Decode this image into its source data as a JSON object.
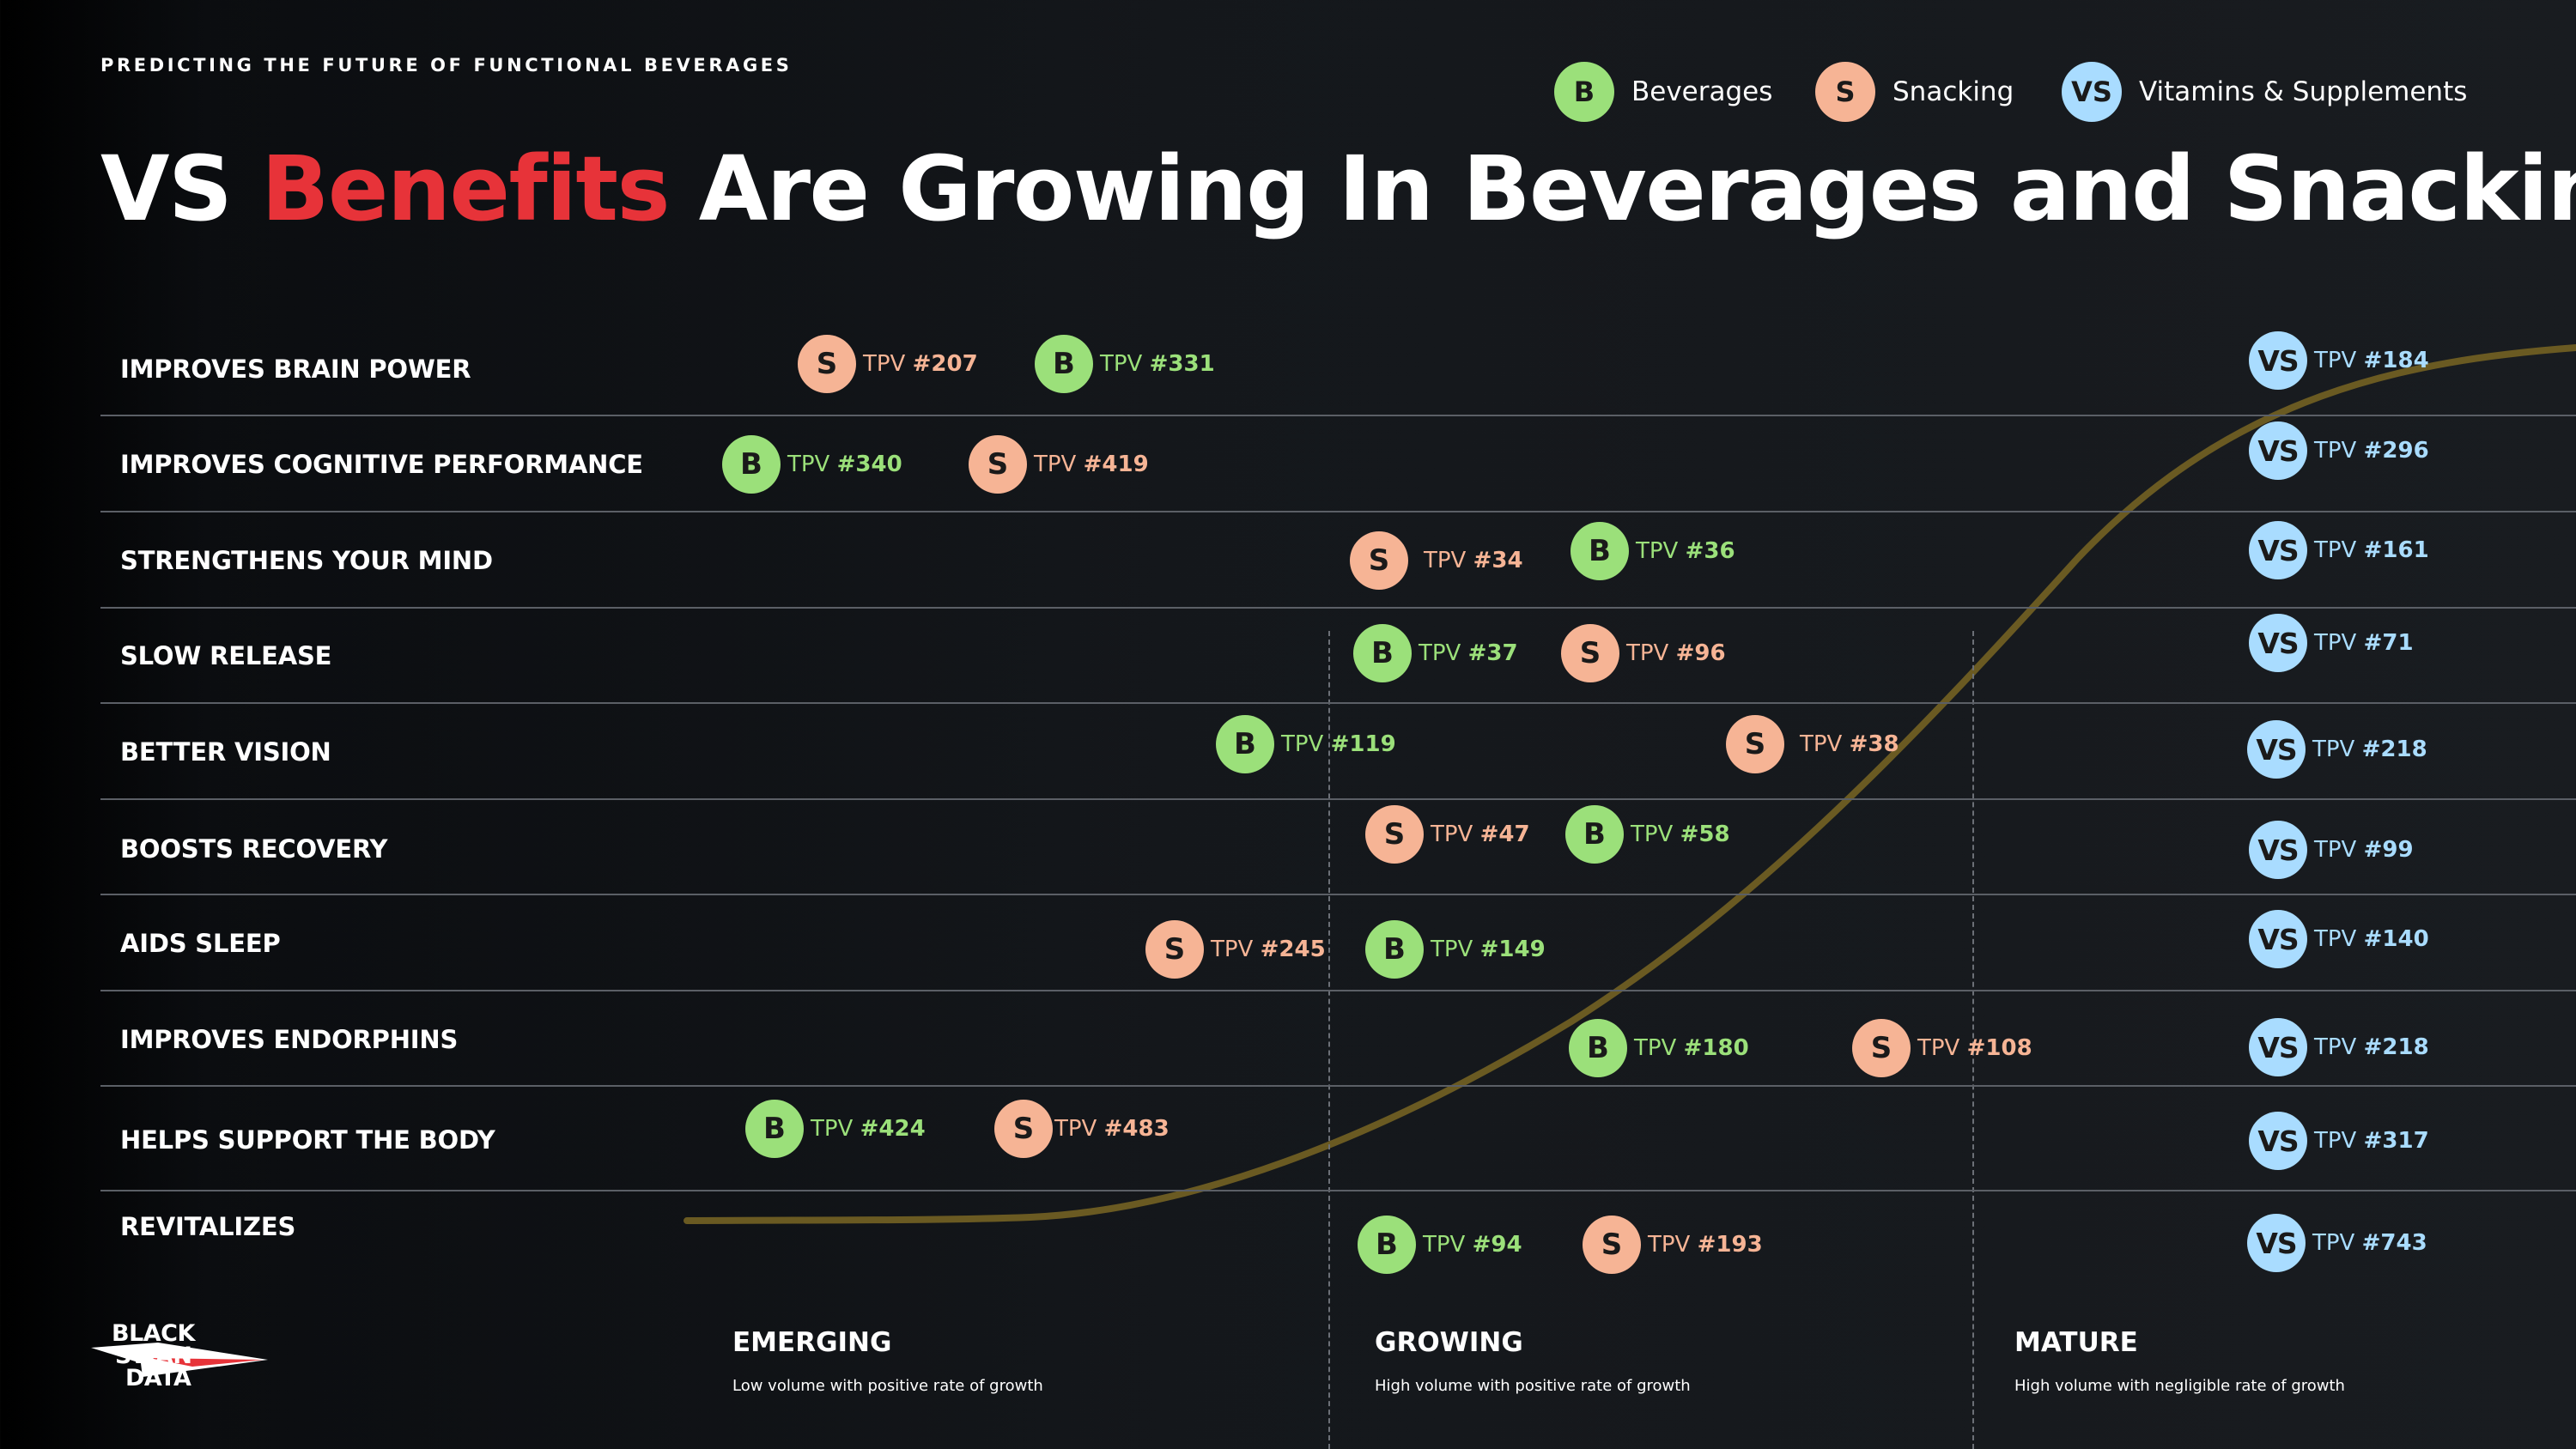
{
  "header": {
    "eyebrow": "PREDICTING THE FUTURE OF FUNCTIONAL BEVERAGES",
    "title_part1": "VS ",
    "title_highlight": "Benefits",
    "title_part2": " Are Growing In Beverages and Snacking"
  },
  "legend": [
    {
      "key": "B",
      "label": "Beverages",
      "color": "#9be07a"
    },
    {
      "key": "S",
      "label": "Snacking",
      "color": "#f6b495"
    },
    {
      "key": "VS",
      "label": "Vitamins & Supplements",
      "color": "#a9dcff"
    }
  ],
  "rows": [
    {
      "label": "IMPROVES BRAIN POWER",
      "markers": [
        {
          "cat": "S",
          "tpv_prefix": "TPV ",
          "tpv_rank": "#207"
        },
        {
          "cat": "B",
          "tpv_prefix": "TPV ",
          "tpv_rank": "#331"
        },
        {
          "cat": "VS",
          "tpv_prefix": "TPV ",
          "tpv_rank": "#184"
        }
      ]
    },
    {
      "label": "IMPROVES COGNITIVE PERFORMANCE",
      "markers": [
        {
          "cat": "B",
          "tpv_prefix": "TPV ",
          "tpv_rank": "#340"
        },
        {
          "cat": "S",
          "tpv_prefix": "TPV ",
          "tpv_rank": "#419"
        },
        {
          "cat": "VS",
          "tpv_prefix": "TPV ",
          "tpv_rank": "#296"
        }
      ]
    },
    {
      "label": "STRENGTHENS YOUR MIND",
      "markers": [
        {
          "cat": "S",
          "tpv_prefix": "TPV ",
          "tpv_rank": "#34"
        },
        {
          "cat": "B",
          "tpv_prefix": "TPV ",
          "tpv_rank": "#36"
        },
        {
          "cat": "VS",
          "tpv_prefix": "TPV ",
          "tpv_rank": "#161"
        }
      ]
    },
    {
      "label": "SLOW RELEASE",
      "markers": [
        {
          "cat": "B",
          "tpv_prefix": "TPV ",
          "tpv_rank": "#37"
        },
        {
          "cat": "S",
          "tpv_prefix": "TPV ",
          "tpv_rank": "#96"
        },
        {
          "cat": "VS",
          "tpv_prefix": "TPV ",
          "tpv_rank": "#71"
        }
      ]
    },
    {
      "label": "BETTER VISION",
      "markers": [
        {
          "cat": "B",
          "tpv_prefix": "TPV ",
          "tpv_rank": "#119"
        },
        {
          "cat": "S",
          "tpv_prefix": "TPV ",
          "tpv_rank": "#38"
        },
        {
          "cat": "VS",
          "tpv_prefix": "TPV ",
          "tpv_rank": "#218"
        }
      ]
    },
    {
      "label": "BOOSTS RECOVERY",
      "markers": [
        {
          "cat": "S",
          "tpv_prefix": "TPV ",
          "tpv_rank": "#47"
        },
        {
          "cat": "B",
          "tpv_prefix": "TPV ",
          "tpv_rank": "#58"
        },
        {
          "cat": "VS",
          "tpv_prefix": "TPV ",
          "tpv_rank": "#99"
        }
      ]
    },
    {
      "label": "AIDS SLEEP",
      "markers": [
        {
          "cat": "S",
          "tpv_prefix": "TPV ",
          "tpv_rank": "#245"
        },
        {
          "cat": "B",
          "tpv_prefix": "TPV ",
          "tpv_rank": "#149"
        },
        {
          "cat": "VS",
          "tpv_prefix": "TPV ",
          "tpv_rank": "#140"
        }
      ]
    },
    {
      "label": "IMPROVES ENDORPHINS",
      "markers": [
        {
          "cat": "B",
          "tpv_prefix": "TPV ",
          "tpv_rank": "#180"
        },
        {
          "cat": "S",
          "tpv_prefix": "TPV ",
          "tpv_rank": "#108"
        },
        {
          "cat": "VS",
          "tpv_prefix": "TPV ",
          "tpv_rank": "#218"
        }
      ]
    },
    {
      "label": "HELPS SUPPORT THE BODY",
      "markers": [
        {
          "cat": "B",
          "tpv_prefix": "TPV ",
          "tpv_rank": "#424"
        },
        {
          "cat": "S",
          "tpv_prefix": "TPV ",
          "tpv_rank": "#483"
        },
        {
          "cat": "VS",
          "tpv_prefix": "TPV ",
          "tpv_rank": "#317"
        }
      ]
    },
    {
      "label": "REVITALIZES",
      "markers": [
        {
          "cat": "B",
          "tpv_prefix": "TPV ",
          "tpv_rank": "#94"
        },
        {
          "cat": "S",
          "tpv_prefix": "TPV ",
          "tpv_rank": "#193"
        },
        {
          "cat": "VS",
          "tpv_prefix": "TPV ",
          "tpv_rank": "#743"
        }
      ]
    }
  ],
  "stages": [
    {
      "name": "EMERGING",
      "desc": "Low volume with positive rate of growth"
    },
    {
      "name": "GROWING",
      "desc": "High volume with positive rate of growth"
    },
    {
      "name": "MATURE",
      "desc": "High volume with negligible rate of growth"
    }
  ],
  "logo": {
    "line1": "BLACK",
    "line2": "SWAN",
    "line3": "DATA"
  },
  "colors": {
    "highlight": "#e73339",
    "curve": "#6a5a22",
    "background": "#14171b"
  }
}
